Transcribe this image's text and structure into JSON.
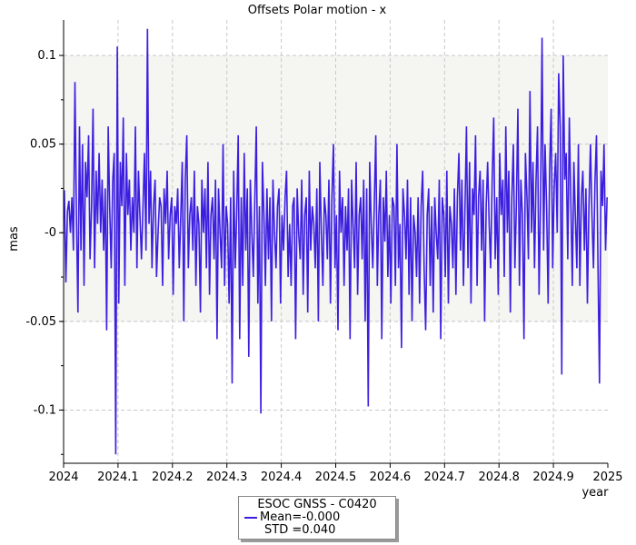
{
  "chart_data": {
    "type": "line",
    "title": "Offsets Polar motion - x",
    "xlabel": "year",
    "ylabel": "mas",
    "xlim": [
      2024,
      2025
    ],
    "ylim": [
      -0.13,
      0.12
    ],
    "xticks": [
      "2024",
      "2024.1",
      "2024.2",
      "2024.3",
      "2024.4",
      "2024.5",
      "2024.6",
      "2024.7",
      "2024.8",
      "2024.9",
      "2025"
    ],
    "yticks": [
      "0.1",
      "0.05",
      "-0",
      "-0.05",
      "-0.1"
    ],
    "band": [
      -0.05,
      0.1
    ],
    "band_color": "#f5f5f2",
    "grid": true,
    "series": [
      {
        "name": "ESOC GNSS - C0420",
        "color": "#3b1ee0",
        "x_step": 0.0027,
        "values": [
          0.024,
          -0.028,
          0.012,
          0.018,
          0.0,
          0.02,
          -0.01,
          0.085,
          0.01,
          -0.045,
          0.06,
          -0.01,
          0.05,
          -0.03,
          0.04,
          0.02,
          0.055,
          -0.015,
          0.015,
          0.07,
          -0.02,
          0.035,
          0.005,
          0.045,
          0.0,
          0.03,
          -0.01,
          0.025,
          -0.055,
          0.06,
          0.015,
          -0.02,
          0.03,
          0.045,
          -0.125,
          0.105,
          -0.04,
          0.04,
          0.015,
          0.065,
          -0.03,
          0.045,
          0.01,
          0.03,
          -0.01,
          0.02,
          0.0,
          0.06,
          -0.02,
          0.035,
          0.01,
          -0.015,
          0.015,
          0.045,
          -0.01,
          0.115,
          0.005,
          0.035,
          -0.02,
          0.015,
          0.03,
          -0.025,
          0.0,
          0.02,
          0.015,
          -0.03,
          0.025,
          0.005,
          0.035,
          -0.015,
          0.01,
          0.02,
          -0.035,
          0.015,
          0.005,
          0.025,
          -0.02,
          0.01,
          0.04,
          -0.05,
          0.03,
          0.055,
          -0.02,
          0.01,
          0.02,
          -0.01,
          0.035,
          -0.03,
          0.015,
          0.005,
          -0.045,
          0.03,
          0.0,
          0.025,
          -0.02,
          0.04,
          -0.035,
          0.01,
          0.02,
          -0.015,
          0.03,
          -0.06,
          0.025,
          0.0,
          -0.02,
          0.05,
          -0.03,
          0.015,
          0.005,
          -0.04,
          0.02,
          -0.085,
          0.035,
          -0.02,
          0.01,
          0.055,
          -0.06,
          0.02,
          -0.03,
          0.045,
          -0.01,
          0.025,
          -0.07,
          0.03,
          0.0,
          -0.025,
          0.02,
          0.06,
          -0.04,
          0.015,
          -0.102,
          0.04,
          0.01,
          -0.03,
          0.025,
          -0.015,
          0.02,
          -0.05,
          0.03,
          0.0,
          -0.02,
          0.015,
          0.025,
          -0.04,
          0.01,
          -0.01,
          0.02,
          0.035,
          -0.025,
          0.005,
          -0.03,
          0.015,
          0.02,
          -0.06,
          0.025,
          0.0,
          -0.015,
          0.03,
          -0.035,
          0.01,
          0.02,
          -0.045,
          0.035,
          -0.01,
          0.015,
          0.005,
          -0.02,
          0.025,
          -0.05,
          0.04,
          0.0,
          -0.03,
          0.02,
          0.01,
          -0.015,
          0.03,
          -0.04,
          0.02,
          0.05,
          -0.02,
          0.01,
          -0.055,
          0.035,
          0.0,
          0.02,
          -0.03,
          0.015,
          -0.01,
          0.025,
          -0.06,
          0.03,
          0.005,
          -0.02,
          0.04,
          -0.035,
          0.01,
          0.02,
          -0.015,
          0.03,
          -0.05,
          0.025,
          -0.098,
          0.04,
          0.005,
          -0.02,
          0.015,
          0.055,
          -0.03,
          0.01,
          0.03,
          -0.06,
          0.02,
          -0.005,
          0.035,
          -0.025,
          0.01,
          -0.04,
          0.02,
          0.015,
          -0.03,
          0.05,
          -0.02,
          0.005,
          -0.065,
          0.025,
          0.01,
          -0.015,
          0.03,
          -0.035,
          0.02,
          -0.05,
          0.01,
          0.0,
          -0.025,
          0.02,
          -0.04,
          0.015,
          0.035,
          -0.02,
          -0.055,
          0.01,
          0.025,
          -0.03,
          0.015,
          -0.045,
          0.02,
          0.0,
          -0.015,
          0.03,
          -0.06,
          0.02,
          0.01,
          -0.025,
          0.035,
          -0.04,
          0.015,
          0.005,
          -0.02,
          0.025,
          -0.035,
          0.02,
          0.045,
          -0.01,
          0.03,
          -0.03,
          0.015,
          0.06,
          -0.02,
          0.04,
          -0.04,
          0.025,
          0.01,
          0.055,
          -0.03,
          0.02,
          0.035,
          -0.01,
          0.03,
          -0.05,
          0.015,
          0.04,
          0.005,
          -0.02,
          0.03,
          0.065,
          -0.015,
          0.02,
          -0.035,
          0.045,
          0.01,
          0.03,
          -0.025,
          0.06,
          0.0,
          0.035,
          -0.045,
          0.02,
          0.05,
          -0.02,
          0.015,
          0.07,
          -0.03,
          0.03,
          0.01,
          -0.06,
          0.045,
          0.02,
          -0.015,
          0.08,
          0.0,
          0.04,
          -0.02,
          0.03,
          0.06,
          -0.035,
          0.02,
          0.11,
          -0.01,
          0.05,
          0.015,
          -0.04,
          0.035,
          0.07,
          -0.02,
          0.025,
          0.045,
          0.0,
          0.09,
          0.06,
          -0.08,
          0.1,
          0.03,
          0.045,
          -0.015,
          0.065,
          0.02,
          -0.03,
          0.04,
          0.01,
          -0.02,
          0.05,
          -0.03,
          0.02,
          0.035,
          -0.01,
          0.025,
          -0.04,
          0.015,
          0.05,
          0.01,
          -0.02,
          0.03,
          0.055,
          -0.02,
          -0.085,
          0.035,
          0.015,
          0.05,
          -0.01,
          0.02
        ]
      }
    ],
    "legend": {
      "name": "ESOC GNSS - C0420",
      "mean": "Mean=-0.000",
      "std": "STD =0.040",
      "placement": "bottom-center"
    }
  }
}
